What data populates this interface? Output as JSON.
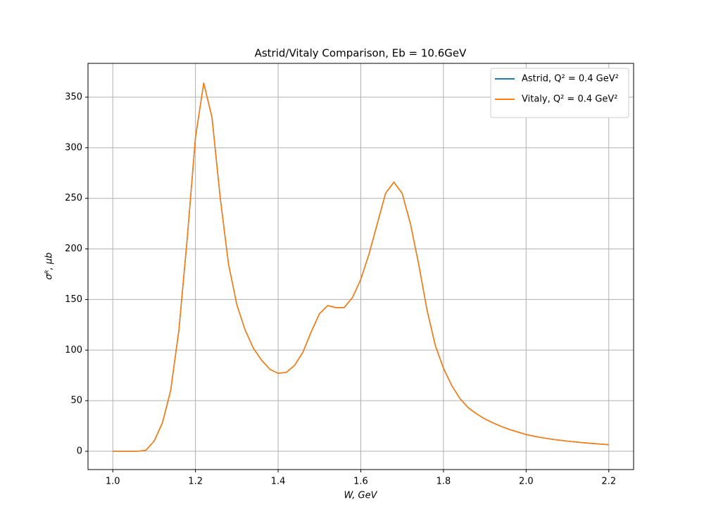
{
  "chart_data": {
    "type": "line",
    "title": "Astrid/Vitaly Comparison, Eb = 10.6GeV",
    "xlabel": "W, GeV",
    "ylabel": "σᴿ, μb",
    "x": [
      1.0,
      1.02,
      1.04,
      1.06,
      1.08,
      1.1,
      1.12,
      1.14,
      1.16,
      1.18,
      1.2,
      1.22,
      1.24,
      1.26,
      1.28,
      1.3,
      1.32,
      1.34,
      1.36,
      1.38,
      1.4,
      1.42,
      1.44,
      1.46,
      1.48,
      1.5,
      1.52,
      1.54,
      1.56,
      1.58,
      1.6,
      1.62,
      1.64,
      1.66,
      1.68,
      1.7,
      1.72,
      1.74,
      1.76,
      1.78,
      1.8,
      1.82,
      1.84,
      1.86,
      1.88,
      1.9,
      1.92,
      1.94,
      1.96,
      1.98,
      2.0,
      2.02,
      2.04,
      2.06,
      2.08,
      2.1,
      2.12,
      2.14,
      2.16,
      2.18,
      2.2
    ],
    "series": [
      {
        "name": "Astrid, Q² = 0.4 GeV²",
        "color": "#1f77b4",
        "values": [
          0,
          0,
          0,
          0,
          1,
          10,
          28,
          60,
          120,
          210,
          310,
          364,
          330,
          250,
          185,
          145,
          120,
          102,
          90,
          81,
          77,
          78,
          85,
          98,
          118,
          136,
          144,
          142,
          142,
          152,
          170,
          195,
          225,
          255,
          266,
          255,
          225,
          185,
          140,
          105,
          82,
          65,
          52,
          43,
          37,
          32,
          28,
          24.5,
          21.5,
          19,
          16.5,
          14.8,
          13.3,
          12,
          11,
          10,
          9.2,
          8.4,
          7.7,
          7.1,
          6.5
        ]
      },
      {
        "name": "Vitaly, Q² = 0.4 GeV²",
        "color": "#ff7f0e",
        "values": [
          0,
          0,
          0,
          0,
          1,
          10,
          28,
          60,
          120,
          210,
          310,
          364,
          330,
          250,
          185,
          145,
          120,
          102,
          90,
          81,
          77,
          78,
          85,
          98,
          118,
          136,
          144,
          142,
          142,
          152,
          170,
          195,
          225,
          255,
          266,
          255,
          225,
          185,
          140,
          105,
          82,
          65,
          52,
          43,
          37,
          32,
          28,
          24.5,
          21.5,
          19,
          16.5,
          14.8,
          13.3,
          12,
          11,
          10,
          9.2,
          8.4,
          7.7,
          7.1,
          6.5
        ]
      }
    ],
    "xlim": [
      0.94,
      2.26
    ],
    "ylim": [
      -18.1,
      383.4
    ],
    "xticks": [
      {
        "value": 1,
        "label": "1.0"
      },
      1.2,
      1.4,
      1.6,
      1.8,
      {
        "value": 2,
        "label": "2.0"
      },
      2.2
    ],
    "yticks": [
      0,
      50,
      100,
      150,
      200,
      250,
      300,
      350
    ],
    "grid": true,
    "legend": "upper right"
  }
}
